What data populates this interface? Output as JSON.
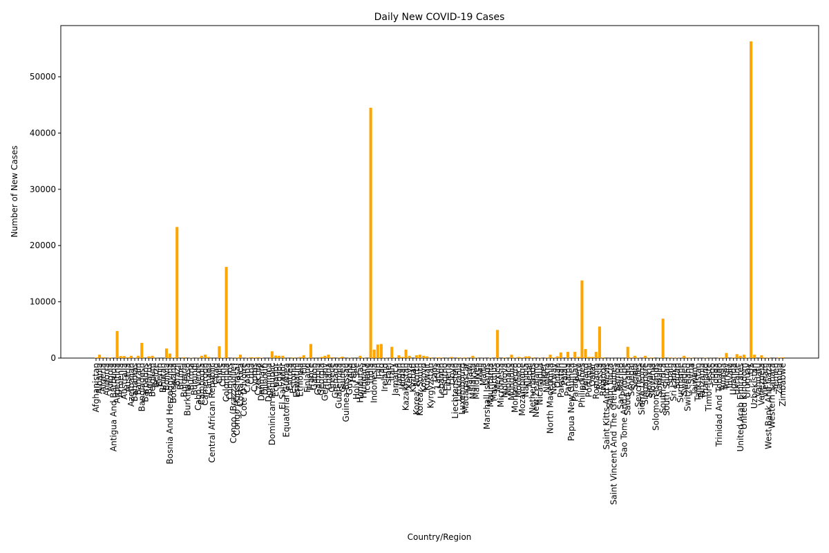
{
  "chart_data": {
    "type": "bar",
    "title": "Daily New COVID-19 Cases",
    "x_label": "Country/Region",
    "y_label": "Number of New Cases",
    "color": "#ffa500",
    "categories": [
      "Afghanistan",
      "Albania",
      "Algeria",
      "Andorra",
      "Angola",
      "Antigua And Barbuda",
      "Argentina",
      "Armenia",
      "Australia",
      "Austria",
      "Azerbaijan",
      "Bahamas",
      "Bahrain",
      "Bangladesh",
      "Barbados",
      "Belarus",
      "Belgium",
      "Belize",
      "Benin",
      "Bhutan",
      "Bolivia",
      "Bosnia And Herzegovina",
      "Botswana",
      "Brazil",
      "Brunei",
      "Bulgaria",
      "Burkina Faso",
      "Burma",
      "Burundi",
      "Cabo Verde",
      "Cambodia",
      "Cameroon",
      "Canada",
      "Central African Republic",
      "Chad",
      "Chile",
      "China",
      "Colombia",
      "Comoros",
      "Congo (Brazzaville)",
      "Congo (Kinshasa)",
      "Costa Rica",
      "Cote D'Ivoire",
      "Croatia",
      "Cuba",
      "Cyprus",
      "Czechia",
      "Denmark",
      "Djibouti",
      "Dominica",
      "Dominican Republic",
      "Ecuador",
      "Egypt",
      "El Salvador",
      "Equatorial Guinea",
      "Eritrea",
      "Estonia",
      "Eswatini",
      "Ethiopia",
      "Fiji",
      "Finland",
      "France",
      "Gabon",
      "Gambia",
      "Georgia",
      "Germany",
      "Ghana",
      "Greece",
      "Grenada",
      "Guatemala",
      "Guinea",
      "Guinea-Bissau",
      "Guyana",
      "Haiti",
      "Holy See",
      "Honduras",
      "Hungary",
      "Iceland",
      "India",
      "Indonesia",
      "Iran",
      "Iraq",
      "Ireland",
      "Israel",
      "Italy",
      "Jamaica",
      "Japan",
      "Jordan",
      "Kazakhstan",
      "Kenya",
      "Kiribati",
      "Korea, North",
      "Korea, South",
      "Kosovo",
      "Kuwait",
      "Kyrgyzstan",
      "Laos",
      "Latvia",
      "Lebanon",
      "Lesotho",
      "Liberia",
      "Libya",
      "Liechtenstein",
      "Lithuania",
      "Luxembourg",
      "Madagascar",
      "Malawi",
      "Malaysia",
      "Maldives",
      "Mali",
      "Malta",
      "Marshall Islands",
      "Mauritania",
      "Mauritius",
      "Mexico",
      "Micronesia",
      "Moldova",
      "Monaco",
      "Mongolia",
      "Montenegro",
      "Morocco",
      "Mozambique",
      "Namibia",
      "Nepal",
      "Netherlands",
      "New Zealand",
      "Nicaragua",
      "Niger",
      "Nigeria",
      "North Macedonia",
      "Norway",
      "Oman",
      "Pakistan",
      "Palau",
      "Panama",
      "Papua New Guinea",
      "Paraguay",
      "Peru",
      "Philippines",
      "Poland",
      "Portugal",
      "Qatar",
      "Romania",
      "Russia",
      "Rwanda",
      "Saint Kitts And Nevis",
      "Saint Lucia",
      "Saint Vincent And The Grenadines",
      "Samoa",
      "San Marino",
      "Sao Tome And Principe",
      "Saudi Arabia",
      "Senegal",
      "Serbia",
      "Seychelles",
      "Sierra Leone",
      "Singapore",
      "Slovakia",
      "Slovenia",
      "Solomon Islands",
      "Somalia",
      "South Africa",
      "South Sudan",
      "Spain",
      "Sri Lanka",
      "Sudan",
      "Suriname",
      "Sweden",
      "Switzerland",
      "Syria",
      "Taiwan*",
      "Tajikistan",
      "Tanzania",
      "Thailand",
      "Timor-Leste",
      "Togo",
      "Tonga",
      "Trinidad And Tobago",
      "Tunisia",
      "Turkey",
      "Tuvalu",
      "Uganda",
      "Ukraine",
      "United Arab Emirates",
      "United Kingdom",
      "Uruguay",
      "US",
      "Uzbekistan",
      "Vanuatu",
      "Venezuela",
      "Vietnam",
      "West Bank And Gaza",
      "Western Sahara",
      "Yemen",
      "Zambia",
      "Zimbabwe"
    ],
    "values": [
      100,
      600,
      150,
      20,
      100,
      10,
      4800,
      350,
      350,
      150,
      400,
      50,
      400,
      2700,
      20,
      300,
      400,
      30,
      10,
      5,
      1700,
      800,
      100,
      23300,
      10,
      150,
      10,
      50,
      10,
      30,
      400,
      600,
      200,
      10,
      5,
      2100,
      50,
      16200,
      5,
      30,
      100,
      600,
      20,
      50,
      150,
      100,
      150,
      50,
      5,
      5,
      1200,
      450,
      400,
      400,
      20,
      10,
      100,
      20,
      200,
      500,
      50,
      2500,
      20,
      10,
      200,
      400,
      600,
      150,
      5,
      100,
      250,
      10,
      50,
      20,
      0,
      400,
      50,
      10,
      44500,
      1500,
      2400,
      2500,
      50,
      30,
      2000,
      50,
      500,
      200,
      1500,
      400,
      0,
      500,
      600,
      400,
      300,
      100,
      10,
      100,
      100,
      5,
      20,
      200,
      5,
      100,
      50,
      100,
      20,
      400,
      50,
      10,
      20,
      0,
      50,
      10,
      5000,
      0,
      100,
      5,
      600,
      50,
      200,
      100,
      300,
      300,
      100,
      10,
      50,
      10,
      100,
      600,
      100,
      300,
      1000,
      0,
      1100,
      10,
      1100,
      200,
      13800,
      1600,
      200,
      200,
      1100,
      5600,
      100,
      0,
      10,
      5,
      0,
      5,
      5,
      2000,
      100,
      400,
      50,
      10,
      400,
      50,
      100,
      0,
      30,
      7000,
      10,
      100,
      50,
      50,
      30,
      400,
      100,
      50,
      10,
      20,
      10,
      50,
      20,
      20,
      0,
      50,
      100,
      900,
      0,
      100,
      700,
      400,
      600,
      50,
      56300,
      600,
      0,
      500,
      100,
      50,
      0,
      10,
      100,
      150
    ],
    "ylim": [
      0,
      59100
    ],
    "yticks": [
      0,
      10000,
      20000,
      30000,
      40000,
      50000
    ]
  }
}
